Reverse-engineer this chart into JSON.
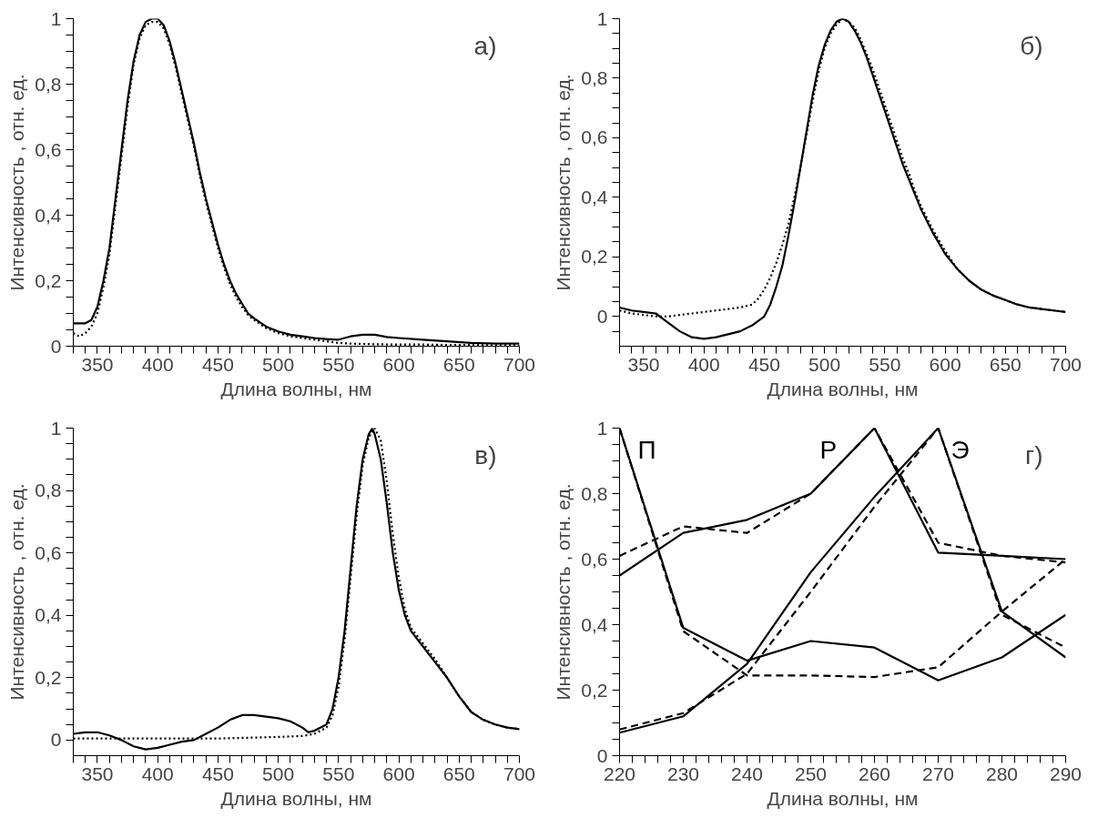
{
  "chart_data": [
    {
      "type": "line",
      "xlabel": "Длина волны, нм",
      "ylabel": "Интенсивность , отн. ед.",
      "annotations": [
        "а)"
      ],
      "grid": false,
      "xlim": [
        330,
        700
      ],
      "ylim": [
        0,
        1
      ],
      "xticks": [
        {
          "value": 330,
          "label": null
        },
        {
          "value": 340,
          "label": null
        },
        350,
        {
          "value": 360,
          "label": null
        },
        {
          "value": 370,
          "label": null
        },
        {
          "value": 380,
          "label": null
        },
        {
          "value": 390,
          "label": null
        },
        400,
        {
          "value": 410,
          "label": null
        },
        {
          "value": 420,
          "label": null
        },
        {
          "value": 430,
          "label": null
        },
        {
          "value": 440,
          "label": null
        },
        450,
        {
          "value": 460,
          "label": null
        },
        {
          "value": 470,
          "label": null
        },
        {
          "value": 480,
          "label": null
        },
        {
          "value": 490,
          "label": null
        },
        500,
        {
          "value": 510,
          "label": null
        },
        {
          "value": 520,
          "label": null
        },
        {
          "value": 530,
          "label": null
        },
        {
          "value": 540,
          "label": null
        },
        550,
        {
          "value": 560,
          "label": null
        },
        {
          "value": 570,
          "label": null
        },
        {
          "value": 580,
          "label": null
        },
        {
          "value": 590,
          "label": null
        },
        600,
        {
          "value": 610,
          "label": null
        },
        {
          "value": 620,
          "label": null
        },
        {
          "value": 630,
          "label": null
        },
        {
          "value": 640,
          "label": null
        },
        650,
        {
          "value": 660,
          "label": null
        },
        {
          "value": 670,
          "label": null
        },
        {
          "value": 680,
          "label": null
        },
        {
          "value": 690,
          "label": null
        },
        700
      ],
      "yticks": [
        0,
        {
          "value": 0.05,
          "label": null
        },
        {
          "value": 0.1,
          "label": null
        },
        {
          "value": 0.15,
          "label": null
        },
        {
          "value": 0.2,
          "label": "0,2"
        },
        {
          "value": 0.25,
          "label": null
        },
        {
          "value": 0.3,
          "label": null
        },
        {
          "value": 0.35,
          "label": null
        },
        {
          "value": 0.4,
          "label": "0,4"
        },
        {
          "value": 0.45,
          "label": null
        },
        {
          "value": 0.5,
          "label": null
        },
        {
          "value": 0.55,
          "label": null
        },
        {
          "value": 0.6,
          "label": "0,6"
        },
        {
          "value": 0.65,
          "label": null
        },
        {
          "value": 0.7,
          "label": null
        },
        {
          "value": 0.75,
          "label": null
        },
        {
          "value": 0.8,
          "label": "0,8"
        },
        {
          "value": 0.85,
          "label": null
        },
        {
          "value": 0.9,
          "label": null
        },
        {
          "value": 0.95,
          "label": null
        },
        1
      ],
      "series": [
        {
          "color": "#000000",
          "line_style": "solid",
          "x": [
            330,
            340,
            345,
            350,
            355,
            360,
            365,
            370,
            375,
            380,
            385,
            390,
            395,
            400,
            405,
            410,
            415,
            420,
            425,
            430,
            435,
            440,
            445,
            450,
            455,
            460,
            465,
            470,
            475,
            480,
            490,
            500,
            510,
            520,
            530,
            540,
            550,
            560,
            570,
            580,
            590,
            600,
            620,
            640,
            660,
            680,
            700
          ],
          "values": [
            0.07,
            0.07,
            0.08,
            0.12,
            0.2,
            0.3,
            0.45,
            0.6,
            0.75,
            0.87,
            0.95,
            0.99,
            1.0,
            1.0,
            0.98,
            0.93,
            0.86,
            0.78,
            0.7,
            0.62,
            0.53,
            0.45,
            0.38,
            0.31,
            0.25,
            0.2,
            0.16,
            0.13,
            0.1,
            0.085,
            0.06,
            0.045,
            0.035,
            0.03,
            0.025,
            0.022,
            0.02,
            0.03,
            0.035,
            0.035,
            0.028,
            0.025,
            0.02,
            0.015,
            0.01,
            0.008,
            0.008
          ]
        },
        {
          "color": "#000000",
          "line_style": "dotted",
          "x": [
            330,
            335,
            340,
            345,
            350,
            355,
            360,
            365,
            370,
            375,
            380,
            385,
            390,
            395,
            400,
            405,
            410,
            415,
            420,
            425,
            430,
            435,
            440,
            445,
            450,
            455,
            460,
            465,
            470,
            475,
            480,
            490,
            500,
            510,
            520,
            530,
            540,
            550,
            560,
            580,
            600,
            620,
            640,
            660,
            680,
            700
          ],
          "values": [
            0.04,
            0.03,
            0.04,
            0.06,
            0.1,
            0.18,
            0.28,
            0.43,
            0.58,
            0.73,
            0.86,
            0.94,
            0.98,
            0.99,
            0.99,
            0.97,
            0.92,
            0.85,
            0.77,
            0.69,
            0.61,
            0.52,
            0.44,
            0.37,
            0.3,
            0.24,
            0.19,
            0.15,
            0.12,
            0.095,
            0.08,
            0.055,
            0.04,
            0.03,
            0.025,
            0.02,
            0.015,
            0.01,
            0.008,
            0.006,
            0.005,
            0.005,
            0.004,
            0.004,
            0.003,
            0.003
          ]
        }
      ]
    },
    {
      "type": "line",
      "xlabel": "Длина волны, нм",
      "ylabel": "Интенсивность , отн. ед.",
      "annotations": [
        "б)"
      ],
      "grid": false,
      "xlim": [
        330,
        700
      ],
      "ylim": [
        -0.1,
        1
      ],
      "xticks": [
        {
          "value": 330,
          "label": null
        },
        {
          "value": 340,
          "label": null
        },
        350,
        {
          "value": 360,
          "label": null
        },
        {
          "value": 370,
          "label": null
        },
        {
          "value": 380,
          "label": null
        },
        {
          "value": 390,
          "label": null
        },
        400,
        {
          "value": 410,
          "label": null
        },
        {
          "value": 420,
          "label": null
        },
        {
          "value": 430,
          "label": null
        },
        {
          "value": 440,
          "label": null
        },
        450,
        {
          "value": 460,
          "label": null
        },
        {
          "value": 470,
          "label": null
        },
        {
          "value": 480,
          "label": null
        },
        {
          "value": 490,
          "label": null
        },
        500,
        {
          "value": 510,
          "label": null
        },
        {
          "value": 520,
          "label": null
        },
        {
          "value": 530,
          "label": null
        },
        {
          "value": 540,
          "label": null
        },
        550,
        {
          "value": 560,
          "label": null
        },
        {
          "value": 570,
          "label": null
        },
        {
          "value": 580,
          "label": null
        },
        {
          "value": 590,
          "label": null
        },
        600,
        {
          "value": 610,
          "label": null
        },
        {
          "value": 620,
          "label": null
        },
        {
          "value": 630,
          "label": null
        },
        {
          "value": 640,
          "label": null
        },
        650,
        {
          "value": 660,
          "label": null
        },
        {
          "value": 670,
          "label": null
        },
        {
          "value": 680,
          "label": null
        },
        {
          "value": 690,
          "label": null
        },
        700
      ],
      "yticks": [
        {
          "value": -0.05,
          "label": null
        },
        0,
        {
          "value": 0.05,
          "label": null
        },
        {
          "value": 0.1,
          "label": null
        },
        {
          "value": 0.15,
          "label": null
        },
        {
          "value": 0.2,
          "label": "0,2"
        },
        {
          "value": 0.25,
          "label": null
        },
        {
          "value": 0.3,
          "label": null
        },
        {
          "value": 0.35,
          "label": null
        },
        {
          "value": 0.4,
          "label": "0,4"
        },
        {
          "value": 0.45,
          "label": null
        },
        {
          "value": 0.5,
          "label": null
        },
        {
          "value": 0.55,
          "label": null
        },
        {
          "value": 0.6,
          "label": "0,6"
        },
        {
          "value": 0.65,
          "label": null
        },
        {
          "value": 0.7,
          "label": null
        },
        {
          "value": 0.75,
          "label": null
        },
        {
          "value": 0.8,
          "label": "0,8"
        },
        {
          "value": 0.85,
          "label": null
        },
        {
          "value": 0.9,
          "label": null
        },
        {
          "value": 0.95,
          "label": null
        },
        1
      ],
      "series": [
        {
          "color": "#000000",
          "line_style": "solid",
          "x": [
            330,
            340,
            350,
            360,
            370,
            380,
            390,
            400,
            410,
            420,
            430,
            440,
            450,
            455,
            460,
            465,
            470,
            475,
            480,
            485,
            490,
            495,
            500,
            505,
            510,
            515,
            520,
            525,
            530,
            535,
            540,
            545,
            550,
            555,
            560,
            565,
            570,
            575,
            580,
            590,
            600,
            610,
            620,
            630,
            640,
            650,
            660,
            670,
            680,
            690,
            700
          ],
          "values": [
            0.03,
            0.02,
            0.015,
            0.01,
            -0.02,
            -0.05,
            -0.07,
            -0.075,
            -0.07,
            -0.06,
            -0.05,
            -0.03,
            0.0,
            0.04,
            0.1,
            0.17,
            0.27,
            0.38,
            0.5,
            0.62,
            0.74,
            0.84,
            0.91,
            0.96,
            0.99,
            1.0,
            0.99,
            0.96,
            0.92,
            0.87,
            0.81,
            0.75,
            0.69,
            0.63,
            0.57,
            0.51,
            0.46,
            0.41,
            0.36,
            0.28,
            0.21,
            0.16,
            0.12,
            0.09,
            0.07,
            0.055,
            0.04,
            0.03,
            0.025,
            0.02,
            0.015
          ]
        },
        {
          "color": "#000000",
          "line_style": "dotted",
          "x": [
            330,
            340,
            350,
            360,
            370,
            380,
            390,
            400,
            410,
            420,
            430,
            440,
            445,
            450,
            455,
            460,
            465,
            470,
            475,
            480,
            485,
            490,
            495,
            500,
            505,
            510,
            515,
            520,
            525,
            530,
            535,
            540,
            545,
            550,
            555,
            560,
            565,
            570,
            575,
            580,
            590,
            600,
            610,
            620,
            630,
            640,
            650,
            660,
            670,
            680,
            690,
            700
          ],
          "values": [
            0.02,
            0.01,
            0.005,
            0.0,
            0.0,
            0.005,
            0.01,
            0.015,
            0.02,
            0.025,
            0.03,
            0.04,
            0.06,
            0.09,
            0.13,
            0.18,
            0.24,
            0.31,
            0.4,
            0.5,
            0.61,
            0.72,
            0.82,
            0.9,
            0.95,
            0.98,
            1.0,
            0.99,
            0.97,
            0.93,
            0.88,
            0.83,
            0.77,
            0.71,
            0.65,
            0.59,
            0.53,
            0.48,
            0.42,
            0.37,
            0.29,
            0.22,
            0.16,
            0.12,
            0.09,
            0.07,
            0.055,
            0.04,
            0.03,
            0.025,
            0.02,
            0.015
          ]
        }
      ]
    },
    {
      "type": "line",
      "xlabel": "Длина волны, нм",
      "ylabel": "Интенсивность , отн. ед.",
      "annotations": [
        "в)"
      ],
      "grid": false,
      "xlim": [
        330,
        700
      ],
      "ylim": [
        -0.05,
        1
      ],
      "xticks": [
        {
          "value": 330,
          "label": null
        },
        {
          "value": 340,
          "label": null
        },
        350,
        {
          "value": 360,
          "label": null
        },
        {
          "value": 370,
          "label": null
        },
        {
          "value": 380,
          "label": null
        },
        {
          "value": 390,
          "label": null
        },
        400,
        {
          "value": 410,
          "label": null
        },
        {
          "value": 420,
          "label": null
        },
        {
          "value": 430,
          "label": null
        },
        {
          "value": 440,
          "label": null
        },
        450,
        {
          "value": 460,
          "label": null
        },
        {
          "value": 470,
          "label": null
        },
        {
          "value": 480,
          "label": null
        },
        {
          "value": 490,
          "label": null
        },
        500,
        {
          "value": 510,
          "label": null
        },
        {
          "value": 520,
          "label": null
        },
        {
          "value": 530,
          "label": null
        },
        {
          "value": 540,
          "label": null
        },
        550,
        {
          "value": 560,
          "label": null
        },
        {
          "value": 570,
          "label": null
        },
        {
          "value": 580,
          "label": null
        },
        {
          "value": 590,
          "label": null
        },
        600,
        {
          "value": 610,
          "label": null
        },
        {
          "value": 620,
          "label": null
        },
        {
          "value": 630,
          "label": null
        },
        {
          "value": 640,
          "label": null
        },
        650,
        {
          "value": 660,
          "label": null
        },
        {
          "value": 670,
          "label": null
        },
        {
          "value": 680,
          "label": null
        },
        {
          "value": 690,
          "label": null
        },
        700
      ],
      "yticks": [
        0,
        {
          "value": 0.05,
          "label": null
        },
        {
          "value": 0.1,
          "label": null
        },
        {
          "value": 0.15,
          "label": null
        },
        {
          "value": 0.2,
          "label": "0,2"
        },
        {
          "value": 0.25,
          "label": null
        },
        {
          "value": 0.3,
          "label": null
        },
        {
          "value": 0.35,
          "label": null
        },
        {
          "value": 0.4,
          "label": "0,4"
        },
        {
          "value": 0.45,
          "label": null
        },
        {
          "value": 0.5,
          "label": null
        },
        {
          "value": 0.55,
          "label": null
        },
        {
          "value": 0.6,
          "label": "0,6"
        },
        {
          "value": 0.65,
          "label": null
        },
        {
          "value": 0.7,
          "label": null
        },
        {
          "value": 0.75,
          "label": null
        },
        {
          "value": 0.8,
          "label": "0,8"
        },
        {
          "value": 0.85,
          "label": null
        },
        {
          "value": 0.9,
          "label": null
        },
        {
          "value": 0.95,
          "label": null
        },
        1
      ],
      "series": [
        {
          "color": "#000000",
          "line_style": "solid",
          "x": [
            330,
            340,
            350,
            360,
            370,
            380,
            390,
            400,
            410,
            420,
            430,
            440,
            450,
            460,
            470,
            480,
            490,
            500,
            510,
            520,
            525,
            530,
            540,
            545,
            550,
            555,
            560,
            565,
            570,
            575,
            578,
            580,
            585,
            590,
            595,
            600,
            605,
            610,
            620,
            630,
            640,
            650,
            660,
            670,
            680,
            690,
            700
          ],
          "values": [
            0.02,
            0.025,
            0.025,
            0.015,
            0.0,
            -0.02,
            -0.03,
            -0.025,
            -0.015,
            -0.005,
            0.0,
            0.02,
            0.04,
            0.065,
            0.08,
            0.08,
            0.075,
            0.07,
            0.06,
            0.04,
            0.025,
            0.03,
            0.05,
            0.1,
            0.2,
            0.35,
            0.55,
            0.75,
            0.9,
            0.98,
            1.0,
            0.98,
            0.9,
            0.76,
            0.6,
            0.48,
            0.4,
            0.35,
            0.3,
            0.25,
            0.2,
            0.14,
            0.09,
            0.065,
            0.05,
            0.04,
            0.035
          ]
        },
        {
          "color": "#000000",
          "line_style": "dotted",
          "x": [
            330,
            350,
            400,
            450,
            470,
            500,
            520,
            530,
            540,
            545,
            550,
            555,
            560,
            565,
            570,
            575,
            580,
            585,
            590,
            595,
            600,
            605,
            610,
            620,
            630,
            640,
            650,
            660,
            670,
            680,
            690,
            700
          ],
          "values": [
            0.005,
            0.005,
            0.005,
            0.005,
            0.007,
            0.01,
            0.013,
            0.02,
            0.04,
            0.08,
            0.17,
            0.32,
            0.52,
            0.72,
            0.88,
            0.97,
            1.0,
            0.96,
            0.83,
            0.66,
            0.52,
            0.42,
            0.36,
            0.31,
            0.26,
            0.2,
            0.14,
            0.09,
            0.065,
            0.05,
            0.04,
            0.035
          ]
        }
      ]
    },
    {
      "type": "line",
      "xlabel": "Длина волны, нм",
      "ylabel": "Интенсивность , отн. ед.",
      "annotations": [
        "г)"
      ],
      "grid": false,
      "xlim": [
        220,
        290
      ],
      "ylim": [
        0,
        1
      ],
      "xticks": [
        220,
        {
          "value": 222,
          "label": null
        },
        {
          "value": 224,
          "label": null
        },
        {
          "value": 226,
          "label": null
        },
        {
          "value": 228,
          "label": null
        },
        230,
        {
          "value": 232,
          "label": null
        },
        {
          "value": 234,
          "label": null
        },
        {
          "value": 236,
          "label": null
        },
        {
          "value": 238,
          "label": null
        },
        240,
        {
          "value": 242,
          "label": null
        },
        {
          "value": 244,
          "label": null
        },
        {
          "value": 246,
          "label": null
        },
        {
          "value": 248,
          "label": null
        },
        250,
        {
          "value": 252,
          "label": null
        },
        {
          "value": 254,
          "label": null
        },
        {
          "value": 256,
          "label": null
        },
        {
          "value": 258,
          "label": null
        },
        260,
        {
          "value": 262,
          "label": null
        },
        {
          "value": 264,
          "label": null
        },
        {
          "value": 266,
          "label": null
        },
        {
          "value": 268,
          "label": null
        },
        270,
        {
          "value": 272,
          "label": null
        },
        {
          "value": 274,
          "label": null
        },
        {
          "value": 276,
          "label": null
        },
        {
          "value": 278,
          "label": null
        },
        280,
        {
          "value": 282,
          "label": null
        },
        {
          "value": 284,
          "label": null
        },
        {
          "value": 286,
          "label": null
        },
        {
          "value": 288,
          "label": null
        },
        290
      ],
      "yticks": [
        0,
        {
          "value": 0.05,
          "label": null
        },
        {
          "value": 0.1,
          "label": null
        },
        {
          "value": 0.15,
          "label": null
        },
        {
          "value": 0.2,
          "label": "0,2"
        },
        {
          "value": 0.25,
          "label": null
        },
        {
          "value": 0.3,
          "label": null
        },
        {
          "value": 0.35,
          "label": null
        },
        {
          "value": 0.4,
          "label": "0,4"
        },
        {
          "value": 0.45,
          "label": null
        },
        {
          "value": 0.5,
          "label": null
        },
        {
          "value": 0.55,
          "label": null
        },
        {
          "value": 0.6,
          "label": "0,6"
        },
        {
          "value": 0.65,
          "label": null
        },
        {
          "value": 0.7,
          "label": null
        },
        {
          "value": 0.75,
          "label": null
        },
        {
          "value": 0.8,
          "label": "0,8"
        },
        {
          "value": 0.85,
          "label": null
        },
        {
          "value": 0.9,
          "label": null
        },
        {
          "value": 0.95,
          "label": null
        },
        1
      ],
      "series": [
        {
          "name": "П",
          "color": "#000000",
          "line_style": "solid",
          "x": [
            220,
            230,
            240,
            250,
            260,
            270,
            280,
            290
          ],
          "values": [
            1.0,
            0.39,
            0.29,
            0.35,
            0.33,
            0.23,
            0.3,
            0.43
          ]
        },
        {
          "color": "#000000",
          "line_style": "dashed",
          "x": [
            220,
            230,
            240,
            250,
            260,
            270,
            280,
            290
          ],
          "values": [
            1.0,
            0.38,
            0.245,
            0.245,
            0.24,
            0.27,
            0.44,
            0.6
          ]
        },
        {
          "name": "Р",
          "color": "#000000",
          "line_style": "solid",
          "x": [
            220,
            230,
            240,
            250,
            260,
            270,
            280,
            290
          ],
          "values": [
            0.55,
            0.68,
            0.72,
            0.8,
            1.0,
            0.62,
            0.61,
            0.6
          ]
        },
        {
          "color": "#000000",
          "line_style": "dashed",
          "x": [
            220,
            230,
            240,
            250,
            260,
            270,
            280,
            290
          ],
          "values": [
            0.61,
            0.7,
            0.68,
            0.8,
            1.0,
            0.65,
            0.61,
            0.59
          ]
        },
        {
          "name": "Э",
          "color": "#000000",
          "line_style": "solid",
          "x": [
            220,
            230,
            240,
            250,
            260,
            270,
            280,
            290
          ],
          "values": [
            0.07,
            0.12,
            0.28,
            0.56,
            0.79,
            1.0,
            0.44,
            0.3
          ]
        },
        {
          "color": "#000000",
          "line_style": "dashed",
          "x": [
            220,
            230,
            240,
            250,
            260,
            270,
            280,
            290
          ],
          "values": [
            0.08,
            0.13,
            0.25,
            0.5,
            0.76,
            1.0,
            0.43,
            0.33
          ]
        }
      ]
    }
  ]
}
